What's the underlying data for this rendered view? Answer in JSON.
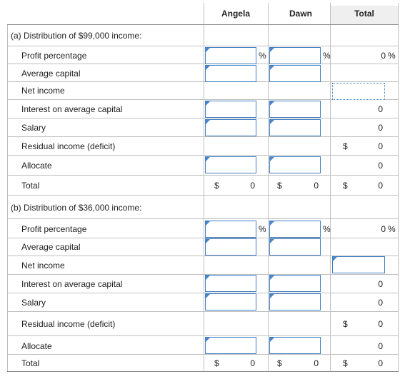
{
  "headers": {
    "col1": "Angela",
    "col2": "Dawn",
    "col3": "Total"
  },
  "sections": [
    {
      "title": "(a) Distribution of $99,000 income:",
      "rows": {
        "profit_percentage": {
          "label": "Profit percentage",
          "total": "0",
          "pct": "%"
        },
        "average_capital": {
          "label": "Average capital"
        },
        "net_income": {
          "label": "Net income"
        },
        "interest": {
          "label": "Interest on average capital",
          "total": "0"
        },
        "salary": {
          "label": "Salary",
          "total": "0"
        },
        "residual": {
          "label": "Residual income (deficit)",
          "dollar": "$",
          "total": "0"
        },
        "allocate": {
          "label": "Allocate",
          "total": "0"
        },
        "total": {
          "label": "Total",
          "dollar": "$",
          "angela": "0",
          "dawn": "0",
          "total": "0"
        }
      }
    },
    {
      "title": "(b) Distribution of $36,000 income:",
      "rows": {
        "profit_percentage": {
          "label": "Profit percentage",
          "total": "0",
          "pct": "%"
        },
        "average_capital": {
          "label": "Average capital"
        },
        "net_income": {
          "label": "Net income"
        },
        "interest": {
          "label": "Interest on average capital",
          "total": "0"
        },
        "salary": {
          "label": "Salary",
          "total": "0"
        },
        "residual": {
          "label": "Residual income (deficit)",
          "dollar": "$",
          "total": "0"
        },
        "allocate": {
          "label": "Allocate",
          "total": "0"
        },
        "total": {
          "label": "Total",
          "dollar": "$",
          "angela": "0",
          "dawn": "0",
          "total": "0"
        }
      }
    }
  ]
}
